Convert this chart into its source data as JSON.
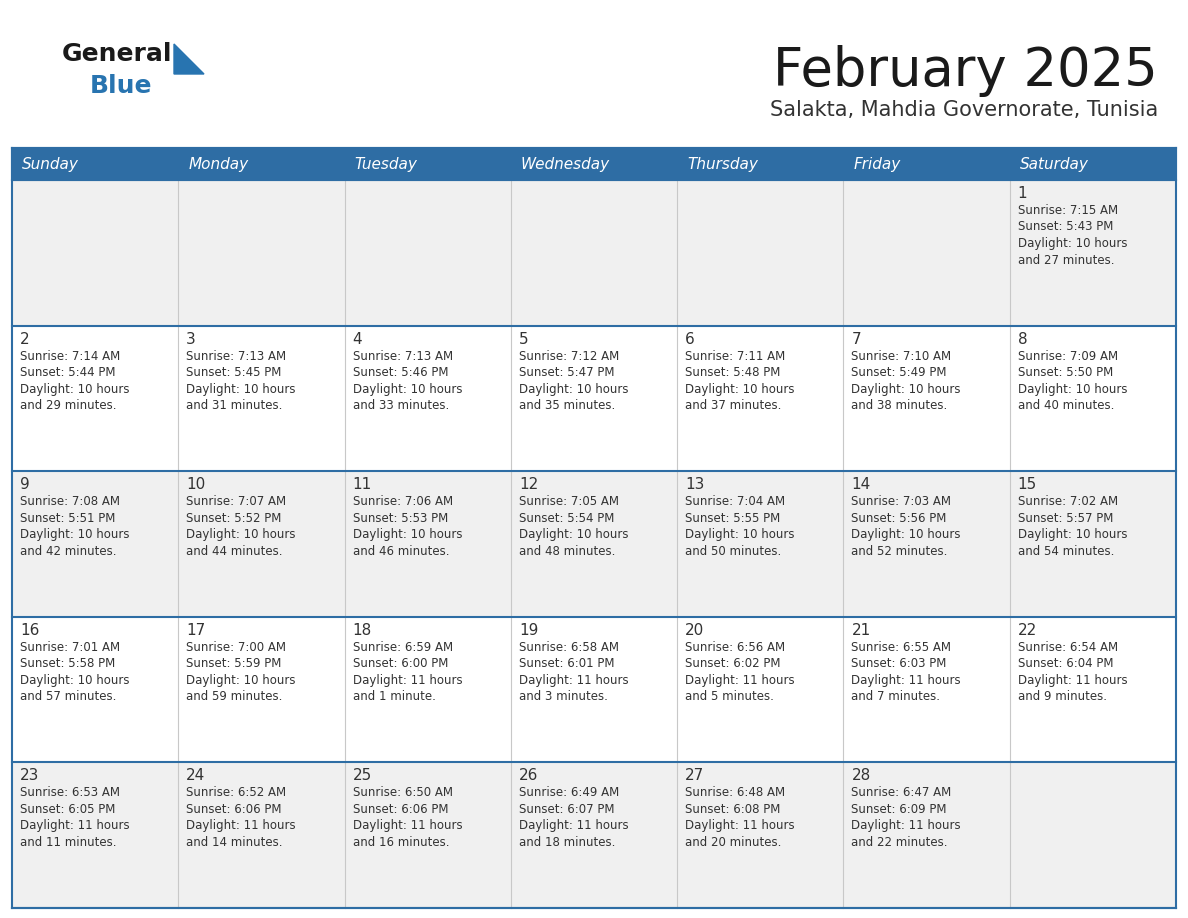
{
  "title": "February 2025",
  "subtitle": "Salakta, Mahdia Governorate, Tunisia",
  "days_of_week": [
    "Sunday",
    "Monday",
    "Tuesday",
    "Wednesday",
    "Thursday",
    "Friday",
    "Saturday"
  ],
  "header_bg": "#2e6da4",
  "header_text": "#ffffff",
  "cell_bg_odd": "#f0f0f0",
  "cell_bg_even": "#ffffff",
  "cell_text": "#333333",
  "day_num_color": "#333333",
  "border_color": "#2e6da4",
  "title_color": "#1a1a1a",
  "subtitle_color": "#333333",
  "logo_general_color": "#1a1a1a",
  "logo_blue_color": "#2874b0",
  "logo_triangle_color": "#2874b0",
  "weeks": [
    [
      {
        "day": null,
        "info": null
      },
      {
        "day": null,
        "info": null
      },
      {
        "day": null,
        "info": null
      },
      {
        "day": null,
        "info": null
      },
      {
        "day": null,
        "info": null
      },
      {
        "day": null,
        "info": null
      },
      {
        "day": 1,
        "info": "Sunrise: 7:15 AM\nSunset: 5:43 PM\nDaylight: 10 hours\nand 27 minutes."
      }
    ],
    [
      {
        "day": 2,
        "info": "Sunrise: 7:14 AM\nSunset: 5:44 PM\nDaylight: 10 hours\nand 29 minutes."
      },
      {
        "day": 3,
        "info": "Sunrise: 7:13 AM\nSunset: 5:45 PM\nDaylight: 10 hours\nand 31 minutes."
      },
      {
        "day": 4,
        "info": "Sunrise: 7:13 AM\nSunset: 5:46 PM\nDaylight: 10 hours\nand 33 minutes."
      },
      {
        "day": 5,
        "info": "Sunrise: 7:12 AM\nSunset: 5:47 PM\nDaylight: 10 hours\nand 35 minutes."
      },
      {
        "day": 6,
        "info": "Sunrise: 7:11 AM\nSunset: 5:48 PM\nDaylight: 10 hours\nand 37 minutes."
      },
      {
        "day": 7,
        "info": "Sunrise: 7:10 AM\nSunset: 5:49 PM\nDaylight: 10 hours\nand 38 minutes."
      },
      {
        "day": 8,
        "info": "Sunrise: 7:09 AM\nSunset: 5:50 PM\nDaylight: 10 hours\nand 40 minutes."
      }
    ],
    [
      {
        "day": 9,
        "info": "Sunrise: 7:08 AM\nSunset: 5:51 PM\nDaylight: 10 hours\nand 42 minutes."
      },
      {
        "day": 10,
        "info": "Sunrise: 7:07 AM\nSunset: 5:52 PM\nDaylight: 10 hours\nand 44 minutes."
      },
      {
        "day": 11,
        "info": "Sunrise: 7:06 AM\nSunset: 5:53 PM\nDaylight: 10 hours\nand 46 minutes."
      },
      {
        "day": 12,
        "info": "Sunrise: 7:05 AM\nSunset: 5:54 PM\nDaylight: 10 hours\nand 48 minutes."
      },
      {
        "day": 13,
        "info": "Sunrise: 7:04 AM\nSunset: 5:55 PM\nDaylight: 10 hours\nand 50 minutes."
      },
      {
        "day": 14,
        "info": "Sunrise: 7:03 AM\nSunset: 5:56 PM\nDaylight: 10 hours\nand 52 minutes."
      },
      {
        "day": 15,
        "info": "Sunrise: 7:02 AM\nSunset: 5:57 PM\nDaylight: 10 hours\nand 54 minutes."
      }
    ],
    [
      {
        "day": 16,
        "info": "Sunrise: 7:01 AM\nSunset: 5:58 PM\nDaylight: 10 hours\nand 57 minutes."
      },
      {
        "day": 17,
        "info": "Sunrise: 7:00 AM\nSunset: 5:59 PM\nDaylight: 10 hours\nand 59 minutes."
      },
      {
        "day": 18,
        "info": "Sunrise: 6:59 AM\nSunset: 6:00 PM\nDaylight: 11 hours\nand 1 minute."
      },
      {
        "day": 19,
        "info": "Sunrise: 6:58 AM\nSunset: 6:01 PM\nDaylight: 11 hours\nand 3 minutes."
      },
      {
        "day": 20,
        "info": "Sunrise: 6:56 AM\nSunset: 6:02 PM\nDaylight: 11 hours\nand 5 minutes."
      },
      {
        "day": 21,
        "info": "Sunrise: 6:55 AM\nSunset: 6:03 PM\nDaylight: 11 hours\nand 7 minutes."
      },
      {
        "day": 22,
        "info": "Sunrise: 6:54 AM\nSunset: 6:04 PM\nDaylight: 11 hours\nand 9 minutes."
      }
    ],
    [
      {
        "day": 23,
        "info": "Sunrise: 6:53 AM\nSunset: 6:05 PM\nDaylight: 11 hours\nand 11 minutes."
      },
      {
        "day": 24,
        "info": "Sunrise: 6:52 AM\nSunset: 6:06 PM\nDaylight: 11 hours\nand 14 minutes."
      },
      {
        "day": 25,
        "info": "Sunrise: 6:50 AM\nSunset: 6:06 PM\nDaylight: 11 hours\nand 16 minutes."
      },
      {
        "day": 26,
        "info": "Sunrise: 6:49 AM\nSunset: 6:07 PM\nDaylight: 11 hours\nand 18 minutes."
      },
      {
        "day": 27,
        "info": "Sunrise: 6:48 AM\nSunset: 6:08 PM\nDaylight: 11 hours\nand 20 minutes."
      },
      {
        "day": 28,
        "info": "Sunrise: 6:47 AM\nSunset: 6:09 PM\nDaylight: 11 hours\nand 22 minutes."
      },
      {
        "day": null,
        "info": null
      }
    ]
  ]
}
